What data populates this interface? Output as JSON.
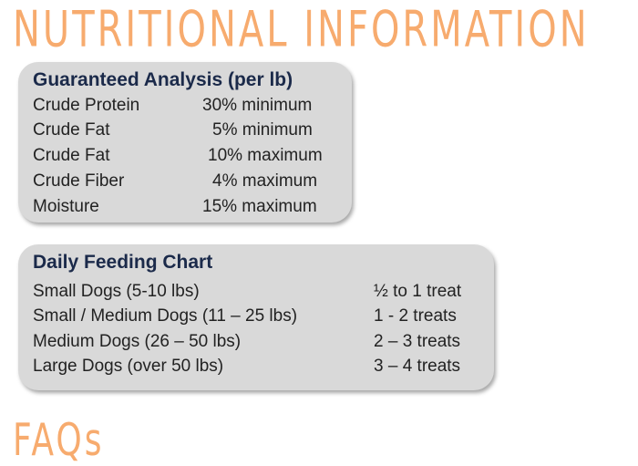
{
  "headings": {
    "main": "NUTRITIONAL INFORMATION",
    "faq": "FAQs"
  },
  "analysis": {
    "title": "Guaranteed Analysis (per lb)",
    "rows": [
      {
        "label": "Crude Protein",
        "value": "30% minimum"
      },
      {
        "label": "Crude Fat",
        "value": "5% minimum"
      },
      {
        "label": "Crude Fat",
        "value": "10% maximum"
      },
      {
        "label": "Crude Fiber",
        "value": "4% maximum"
      },
      {
        "label": "Moisture",
        "value": "15% maximum"
      }
    ]
  },
  "feeding": {
    "title": "Daily Feeding Chart",
    "rows": [
      {
        "label": "Small Dogs (5-10 lbs)",
        "value": "½ to 1 treat"
      },
      {
        "label": "Small / Medium Dogs (11 – 25 lbs)",
        "value": "1 - 2 treats"
      },
      {
        "label": "Medium Dogs  (26 – 50 lbs)",
        "value": "2 – 3 treats"
      },
      {
        "label": "Large Dogs (over 50 lbs)",
        "value": "3 – 4 treats"
      }
    ]
  },
  "colors": {
    "heading": "#f7ab6e",
    "panel": "#d9d9d9",
    "title": "#1b2a4a"
  }
}
